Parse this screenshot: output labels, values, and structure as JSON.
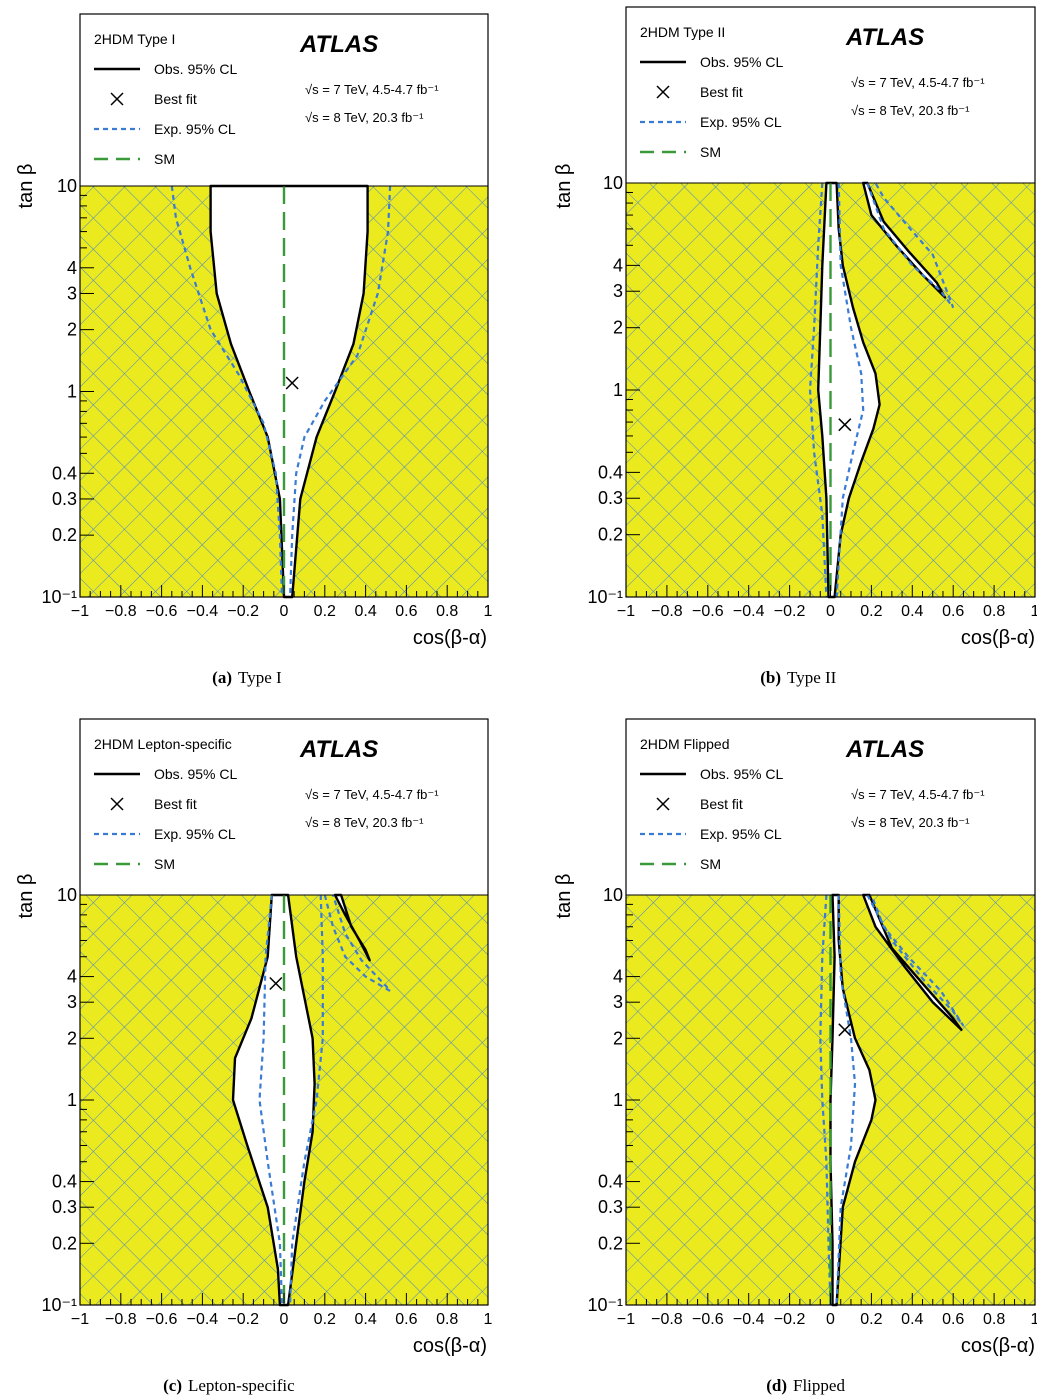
{
  "chart_data": [
    {
      "type": "contour",
      "subfigure_label": "(a)",
      "caption": "Type I",
      "legend_title": "2HDM Type I",
      "experiment": "ATLAS",
      "energy_lines": [
        "√s = 7 TeV, 4.5-4.7 fb⁻¹",
        "√s = 8 TeV, 20.3 fb⁻¹"
      ],
      "legend": [
        {
          "label": "Obs. 95% CL",
          "style": "solid-black"
        },
        {
          "label": "Best fit",
          "style": "cross"
        },
        {
          "label": "Exp. 95% CL",
          "style": "dashed-blue"
        },
        {
          "label": "SM",
          "style": "longdash-green"
        }
      ],
      "xlabel": "cos(β-α)",
      "ylabel": "tan β",
      "xlim": [
        -1,
        1
      ],
      "ylim": [
        0.1,
        10
      ],
      "ylog": true,
      "xticks": [
        "−1",
        "−0.8",
        "−0.6",
        "−0.4",
        "−0.2",
        "0",
        "0.2",
        "0.4",
        "0.6",
        "0.8",
        "1"
      ],
      "yticks": [
        {
          "v": 0.1,
          "label": "10⁻¹"
        },
        {
          "v": 0.2,
          "label": "0.2"
        },
        {
          "v": 0.3,
          "label": "0.3"
        },
        {
          "v": 0.4,
          "label": "0.4"
        },
        {
          "v": 1,
          "label": "1"
        },
        {
          "v": 2,
          "label": "2"
        },
        {
          "v": 3,
          "label": "3"
        },
        {
          "v": 4,
          "label": "4"
        },
        {
          "v": 10,
          "label": "10"
        }
      ],
      "best_fit": {
        "x": 0.04,
        "y": 1.1
      },
      "sm_line_x": 0,
      "observed_allowed_region": [
        [
          -0.36,
          10
        ],
        [
          -0.36,
          6
        ],
        [
          -0.33,
          3
        ],
        [
          -0.26,
          1.7
        ],
        [
          -0.17,
          1
        ],
        [
          -0.08,
          0.6
        ],
        [
          -0.02,
          0.3
        ],
        [
          0,
          0.1
        ],
        [
          0.04,
          0.1
        ],
        [
          0.08,
          0.3
        ],
        [
          0.16,
          0.6
        ],
        [
          0.25,
          1
        ],
        [
          0.34,
          1.7
        ],
        [
          0.39,
          3
        ],
        [
          0.41,
          6
        ],
        [
          0.41,
          10
        ]
      ],
      "expected_contours": [
        [
          [
            -0.55,
            10
          ],
          [
            -0.53,
            7
          ],
          [
            -0.46,
            4
          ],
          [
            -0.36,
            2
          ],
          [
            -0.22,
            1.2
          ],
          [
            -0.1,
            0.7
          ],
          [
            -0.04,
            0.4
          ],
          [
            -0.02,
            0.2
          ],
          [
            -0.01,
            0.1
          ]
        ],
        [
          [
            0.52,
            10
          ],
          [
            0.51,
            6
          ],
          [
            0.46,
            3
          ],
          [
            0.36,
            1.5
          ],
          [
            0.2,
            0.9
          ],
          [
            0.1,
            0.6
          ],
          [
            0.06,
            0.4
          ],
          [
            0.04,
            0.2
          ],
          [
            0.03,
            0.1
          ]
        ]
      ]
    },
    {
      "type": "contour",
      "subfigure_label": "(b)",
      "caption": "Type II",
      "legend_title": "2HDM Type II",
      "experiment": "ATLAS",
      "energy_lines": [
        "√s = 7 TeV, 4.5-4.7 fb⁻¹",
        "√s = 8 TeV, 20.3 fb⁻¹"
      ],
      "legend": [
        {
          "label": "Obs. 95% CL",
          "style": "solid-black"
        },
        {
          "label": "Best fit",
          "style": "cross"
        },
        {
          "label": "Exp. 95% CL",
          "style": "dashed-blue"
        },
        {
          "label": "SM",
          "style": "longdash-green"
        }
      ],
      "xlabel": "cos(β-α)",
      "ylabel": "tan β",
      "xlim": [
        -1,
        1
      ],
      "ylim": [
        0.1,
        10
      ],
      "ylog": true,
      "xticks": [
        "−1",
        "−0.8",
        "−0.6",
        "−0.4",
        "−0.2",
        "0",
        "0.2",
        "0.4",
        "0.6",
        "0.8",
        "1"
      ],
      "yticks": [
        {
          "v": 0.1,
          "label": "10⁻¹"
        },
        {
          "v": 0.2,
          "label": "0.2"
        },
        {
          "v": 0.3,
          "label": "0.3"
        },
        {
          "v": 0.4,
          "label": "0.4"
        },
        {
          "v": 1,
          "label": "1"
        },
        {
          "v": 2,
          "label": "2"
        },
        {
          "v": 3,
          "label": "3"
        },
        {
          "v": 4,
          "label": "4"
        },
        {
          "v": 10,
          "label": "10"
        }
      ],
      "best_fit": {
        "x": 0.07,
        "y": 0.68
      },
      "sm_line_x": 0,
      "observed_allowed_region": [
        [
          -0.02,
          10
        ],
        [
          -0.04,
          4
        ],
        [
          -0.05,
          2
        ],
        [
          -0.06,
          1
        ],
        [
          -0.04,
          0.6
        ],
        [
          -0.02,
          0.3
        ],
        [
          -0.01,
          0.1
        ],
        [
          0.02,
          0.1
        ],
        [
          0.05,
          0.2
        ],
        [
          0.09,
          0.3
        ],
        [
          0.15,
          0.45
        ],
        [
          0.21,
          0.65
        ],
        [
          0.24,
          0.85
        ],
        [
          0.22,
          1.2
        ],
        [
          0.16,
          1.7
        ],
        [
          0.11,
          2.5
        ],
        [
          0.06,
          4
        ],
        [
          0.04,
          6
        ],
        [
          0.03,
          10
        ]
      ],
      "observed_allowed_region_2": [
        [
          0.16,
          10
        ],
        [
          0.2,
          7
        ],
        [
          0.32,
          5
        ],
        [
          0.45,
          3.6
        ],
        [
          0.56,
          2.8
        ],
        [
          0.52,
          3.3
        ],
        [
          0.38,
          4.7
        ],
        [
          0.26,
          6.5
        ],
        [
          0.18,
          10
        ]
      ],
      "expected_contours": [
        [
          [
            -0.04,
            10
          ],
          [
            -0.06,
            5
          ],
          [
            -0.08,
            2
          ],
          [
            -0.1,
            1
          ],
          [
            -0.08,
            0.5
          ],
          [
            -0.04,
            0.25
          ],
          [
            -0.02,
            0.1
          ]
        ],
        [
          [
            0.04,
            10
          ],
          [
            0.05,
            4
          ],
          [
            0.1,
            2
          ],
          [
            0.15,
            1.2
          ],
          [
            0.16,
            0.8
          ],
          [
            0.11,
            0.5
          ],
          [
            0.06,
            0.3
          ],
          [
            0.03,
            0.1
          ]
        ],
        [
          [
            0.18,
            10
          ],
          [
            0.26,
            6
          ],
          [
            0.4,
            4
          ],
          [
            0.54,
            3
          ],
          [
            0.6,
            2.5
          ],
          [
            0.5,
            4.5
          ],
          [
            0.36,
            6.5
          ],
          [
            0.26,
            8.5
          ],
          [
            0.22,
            10
          ]
        ]
      ]
    },
    {
      "type": "contour",
      "subfigure_label": "(c)",
      "caption": "Lepton-specific",
      "legend_title": "2HDM Lepton-specific",
      "experiment": "ATLAS",
      "energy_lines": [
        "√s = 7 TeV, 4.5-4.7 fb⁻¹",
        "√s = 8 TeV, 20.3 fb⁻¹"
      ],
      "legend": [
        {
          "label": "Obs. 95% CL",
          "style": "solid-black"
        },
        {
          "label": "Best fit",
          "style": "cross"
        },
        {
          "label": "Exp. 95% CL",
          "style": "dashed-blue"
        },
        {
          "label": "SM",
          "style": "longdash-green"
        }
      ],
      "xlabel": "cos(β-α)",
      "ylabel": "tan β",
      "xlim": [
        -1,
        1
      ],
      "ylim": [
        0.1,
        10
      ],
      "ylog": true,
      "xticks": [
        "−1",
        "−0.8",
        "−0.6",
        "−0.4",
        "−0.2",
        "0",
        "0.2",
        "0.4",
        "0.6",
        "0.8",
        "1"
      ],
      "yticks": [
        {
          "v": 0.1,
          "label": "10⁻¹"
        },
        {
          "v": 0.2,
          "label": "0.2"
        },
        {
          "v": 0.3,
          "label": "0.3"
        },
        {
          "v": 0.4,
          "label": "0.4"
        },
        {
          "v": 1,
          "label": "1"
        },
        {
          "v": 2,
          "label": "2"
        },
        {
          "v": 3,
          "label": "3"
        },
        {
          "v": 4,
          "label": "4"
        },
        {
          "v": 10,
          "label": "10"
        }
      ],
      "best_fit": {
        "x": -0.04,
        "y": 3.7
      },
      "sm_line_x": 0,
      "observed_allowed_region": [
        [
          -0.06,
          10
        ],
        [
          -0.08,
          5
        ],
        [
          -0.16,
          2.5
        ],
        [
          -0.24,
          1.6
        ],
        [
          -0.25,
          1
        ],
        [
          -0.18,
          0.6
        ],
        [
          -0.08,
          0.3
        ],
        [
          -0.03,
          0.15
        ],
        [
          -0.02,
          0.1
        ],
        [
          0.02,
          0.1
        ],
        [
          0.06,
          0.2
        ],
        [
          0.1,
          0.4
        ],
        [
          0.14,
          0.7
        ],
        [
          0.15,
          1.2
        ],
        [
          0.14,
          2
        ],
        [
          0.06,
          5
        ],
        [
          0.02,
          10
        ]
      ],
      "observed_allowed_region_2": [
        [
          0.25,
          10
        ],
        [
          0.3,
          8
        ],
        [
          0.37,
          6
        ],
        [
          0.42,
          4.8
        ],
        [
          0.4,
          5.4
        ],
        [
          0.33,
          7
        ],
        [
          0.28,
          10
        ]
      ],
      "expected_contours": [
        [
          [
            -0.06,
            10
          ],
          [
            -0.09,
            5
          ],
          [
            -0.1,
            2
          ],
          [
            -0.12,
            1
          ],
          [
            -0.08,
            0.5
          ],
          [
            -0.02,
            0.2
          ],
          [
            -0.01,
            0.1
          ]
        ],
        [
          [
            0.18,
            10
          ],
          [
            0.19,
            5
          ],
          [
            0.19,
            2
          ],
          [
            0.16,
            1
          ],
          [
            0.1,
            0.5
          ],
          [
            0.04,
            0.2
          ],
          [
            0.03,
            0.1
          ]
        ],
        [
          [
            0.2,
            10
          ],
          [
            0.24,
            7
          ],
          [
            0.3,
            5
          ],
          [
            0.4,
            4
          ],
          [
            0.52,
            3.4
          ],
          [
            0.5,
            3.6
          ],
          [
            0.38,
            4.8
          ],
          [
            0.3,
            6.5
          ],
          [
            0.24,
            10
          ]
        ]
      ]
    },
    {
      "type": "contour",
      "subfigure_label": "(d)",
      "caption": "Flipped",
      "legend_title": "2HDM Flipped",
      "experiment": "ATLAS",
      "energy_lines": [
        "√s = 7 TeV, 4.5-4.7 fb⁻¹",
        "√s = 8 TeV, 20.3 fb⁻¹"
      ],
      "legend": [
        {
          "label": "Obs. 95% CL",
          "style": "solid-black"
        },
        {
          "label": "Best fit",
          "style": "cross"
        },
        {
          "label": "Exp. 95% CL",
          "style": "dashed-blue"
        },
        {
          "label": "SM",
          "style": "longdash-green"
        }
      ],
      "xlabel": "cos(β-α)",
      "ylabel": "tan β",
      "xlim": [
        -1,
        1
      ],
      "ylim": [
        0.1,
        10
      ],
      "ylog": true,
      "xticks": [
        "−1",
        "−0.8",
        "−0.6",
        "−0.4",
        "−0.2",
        "0",
        "0.2",
        "0.4",
        "0.6",
        "0.8",
        "1"
      ],
      "yticks": [
        {
          "v": 0.1,
          "label": "10⁻¹"
        },
        {
          "v": 0.2,
          "label": "0.2"
        },
        {
          "v": 0.3,
          "label": "0.3"
        },
        {
          "v": 0.4,
          "label": "0.4"
        },
        {
          "v": 1,
          "label": "1"
        },
        {
          "v": 2,
          "label": "2"
        },
        {
          "v": 3,
          "label": "3"
        },
        {
          "v": 4,
          "label": "4"
        },
        {
          "v": 10,
          "label": "10"
        }
      ],
      "best_fit": {
        "x": 0.07,
        "y": 2.2
      },
      "sm_line_x": 0,
      "observed_allowed_region": [
        [
          0.01,
          10
        ],
        [
          0.02,
          5
        ],
        [
          0.01,
          2
        ],
        [
          0,
          1
        ],
        [
          0,
          0.5
        ],
        [
          0.01,
          0.2
        ],
        [
          0.01,
          0.1
        ],
        [
          0.03,
          0.1
        ],
        [
          0.06,
          0.3
        ],
        [
          0.12,
          0.5
        ],
        [
          0.2,
          0.8
        ],
        [
          0.22,
          1
        ],
        [
          0.19,
          1.4
        ],
        [
          0.12,
          2
        ],
        [
          0.06,
          3.5
        ],
        [
          0.04,
          6
        ],
        [
          0.04,
          10
        ]
      ],
      "observed_allowed_region_2": [
        [
          0.16,
          10
        ],
        [
          0.22,
          7
        ],
        [
          0.36,
          4.5
        ],
        [
          0.5,
          3
        ],
        [
          0.64,
          2.2
        ],
        [
          0.6,
          2.5
        ],
        [
          0.44,
          3.8
        ],
        [
          0.3,
          5.5
        ],
        [
          0.19,
          10
        ]
      ],
      "expected_contours": [
        [
          [
            -0.02,
            10
          ],
          [
            -0.04,
            5
          ],
          [
            -0.05,
            2
          ],
          [
            -0.04,
            1
          ],
          [
            -0.02,
            0.5
          ],
          [
            -0.01,
            0.2
          ],
          [
            0,
            0.1
          ]
        ],
        [
          [
            0.04,
            10
          ],
          [
            0.05,
            4
          ],
          [
            0.1,
            2
          ],
          [
            0.12,
            1.2
          ],
          [
            0.1,
            0.6
          ],
          [
            0.05,
            0.3
          ],
          [
            0.03,
            0.1
          ]
        ],
        [
          [
            0.18,
            10
          ],
          [
            0.3,
            6
          ],
          [
            0.46,
            3.8
          ],
          [
            0.6,
            2.7
          ],
          [
            0.65,
            2.3
          ],
          [
            0.54,
            3.4
          ],
          [
            0.38,
            5
          ],
          [
            0.26,
            7
          ],
          [
            0.2,
            10
          ]
        ]
      ]
    }
  ],
  "colors": {
    "excluded_fill": "#eaea1e",
    "hatch": "#4a86c8",
    "observed": "#000000",
    "expected": "#3a7bd5",
    "sm": "#3a9a3a"
  }
}
